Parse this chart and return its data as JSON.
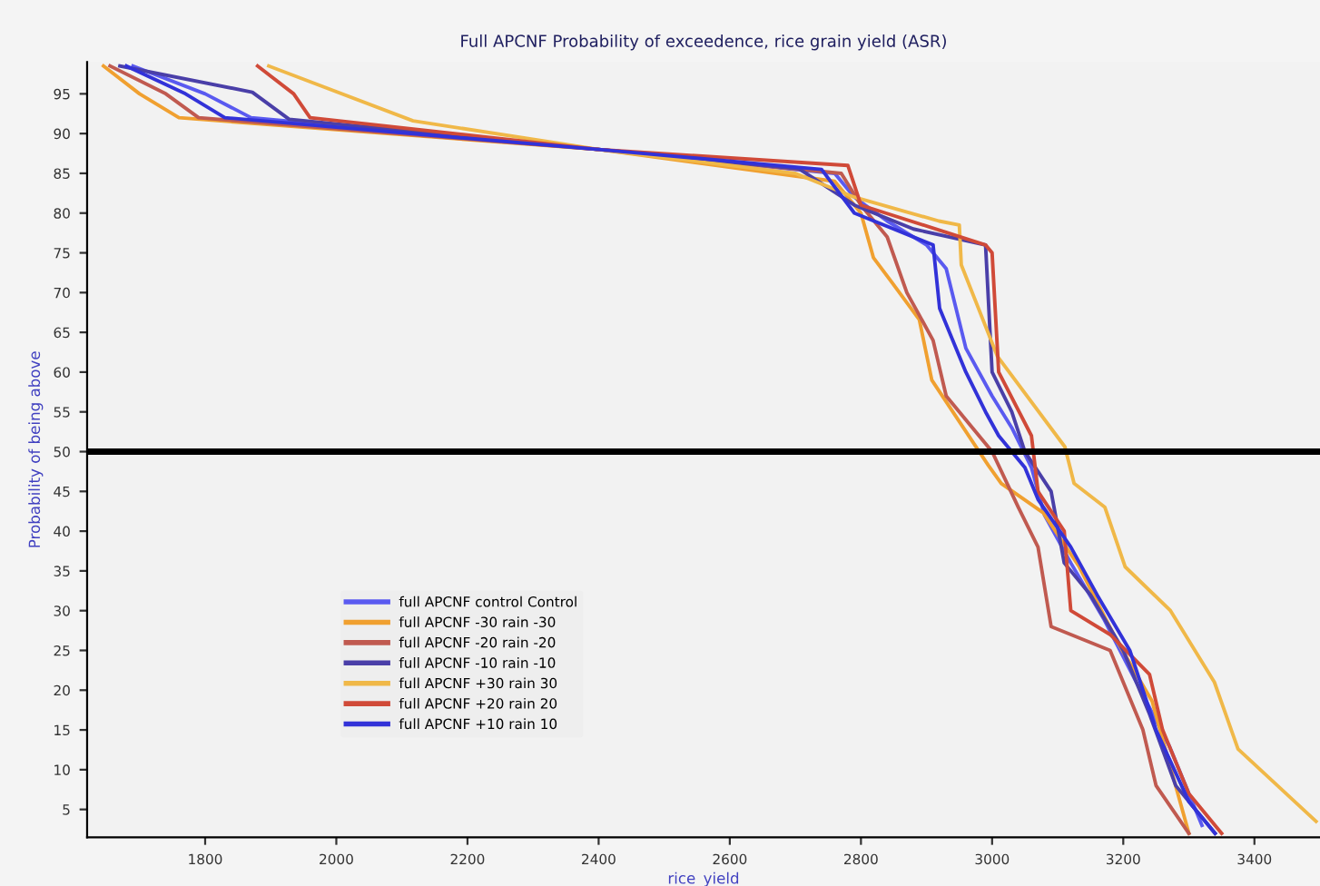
{
  "chart_data": {
    "type": "line",
    "title": "Full APCNF Probability of exceedence, rice grain yield (ASR)",
    "xlabel": "rice_yield",
    "ylabel": "Probability of being above",
    "xlim": [
      1620,
      3500
    ],
    "ylim": [
      1.5,
      99
    ],
    "xticks": [
      1800,
      2000,
      2200,
      2400,
      2600,
      2800,
      3000,
      3200,
      3400
    ],
    "yticks": [
      5,
      10,
      15,
      20,
      25,
      30,
      35,
      40,
      45,
      50,
      55,
      60,
      65,
      70,
      75,
      80,
      85,
      90,
      95
    ],
    "grid": false,
    "legend": "bottom left",
    "marker": "none",
    "line_style": "solid",
    "ref_lines": [
      {
        "axis": "y",
        "value": 50,
        "color": "#000000",
        "line_style": "solid"
      }
    ],
    "series": [
      {
        "name": "full APCNF control Control",
        "color": "#5a5af0",
        "x": [
          1690,
          1800,
          1870,
          2400,
          2760,
          2790,
          2840,
          2900,
          2930,
          2960,
          3000,
          3030,
          3060,
          3080,
          3120,
          3170,
          3220,
          3270,
          3320
        ],
        "values": [
          98.5,
          95,
          92,
          88,
          85,
          82,
          79,
          76,
          73,
          63,
          57,
          53,
          48,
          42,
          36,
          29,
          21,
          13,
          3
        ]
      },
      {
        "name": "full APCNF -30 rain -30",
        "color": "#f0a030",
        "x": [
          1645,
          1700,
          1760,
          2400,
          2760,
          2800,
          2819,
          2847,
          2889,
          2908,
          2994,
          3014,
          3078,
          3133,
          3189,
          3244,
          3300
        ],
        "values": [
          98.5,
          95,
          92,
          88,
          84,
          80,
          74.4,
          71.3,
          66.6,
          59,
          48.3,
          46,
          42.3,
          35.5,
          26.4,
          18.6,
          2
        ]
      },
      {
        "name": "full APCNF -20 rain -20",
        "color": "#c05a50",
        "x": [
          1655,
          1740,
          1790,
          2400,
          2770,
          2800,
          2840,
          2870,
          2910,
          2930,
          3000,
          3040,
          3070,
          3090,
          3180,
          3230,
          3250,
          3300
        ],
        "values": [
          98.5,
          95,
          92,
          88,
          85,
          81,
          77,
          70,
          64,
          57,
          50,
          43,
          38,
          28,
          25,
          15,
          8,
          2
        ]
      },
      {
        "name": "full APCNF -10 rain -10",
        "color": "#4a3fa8",
        "x": [
          1670,
          1872,
          1928,
          2400,
          2705,
          2790,
          2880,
          2990,
          3000,
          3030,
          3050,
          3090,
          3110,
          3150,
          3200,
          3240,
          3280,
          3340
        ],
        "values": [
          98.5,
          95.2,
          91.8,
          88,
          85.6,
          81,
          78,
          76,
          60,
          55,
          50,
          45,
          36,
          32,
          25,
          17,
          8,
          2
        ]
      },
      {
        "name": "full APCNF +30 rain 30",
        "color": "#f0b848",
        "x": [
          1897,
          2117,
          2400,
          2700,
          2790,
          2919,
          2950,
          2953,
          3008,
          3111,
          3125,
          3172,
          3203,
          3272,
          3339,
          3375,
          3494
        ],
        "values": [
          98.5,
          91.6,
          88,
          85,
          82,
          79,
          78.5,
          73.5,
          62,
          50.6,
          46,
          43,
          35.5,
          30,
          21,
          12.6,
          3.5
        ]
      },
      {
        "name": "full APCNF +20 rain 20",
        "color": "#d04a38",
        "x": [
          1880,
          1935,
          1960,
          2400,
          2780,
          2800,
          2990,
          3000,
          3010,
          3060,
          3070,
          3110,
          3120,
          3180,
          3240,
          3260,
          3300,
          3350
        ],
        "values": [
          98.5,
          95,
          92,
          88,
          86,
          81,
          76,
          75,
          60,
          52,
          45,
          40,
          30,
          27,
          22,
          15,
          7,
          2
        ]
      },
      {
        "name": "full APCNF +10 rain 10",
        "color": "#3232d8",
        "x": [
          1680,
          1770,
          1830,
          2400,
          2740,
          2790,
          2910,
          2920,
          2960,
          2990,
          3010,
          3050,
          3070,
          3120,
          3160,
          3210,
          3250,
          3300,
          3340
        ],
        "values": [
          98.5,
          95,
          92,
          88,
          85.5,
          80,
          76,
          68,
          60,
          55,
          52,
          48,
          44,
          38,
          32,
          25,
          15,
          6,
          2
        ]
      }
    ]
  }
}
